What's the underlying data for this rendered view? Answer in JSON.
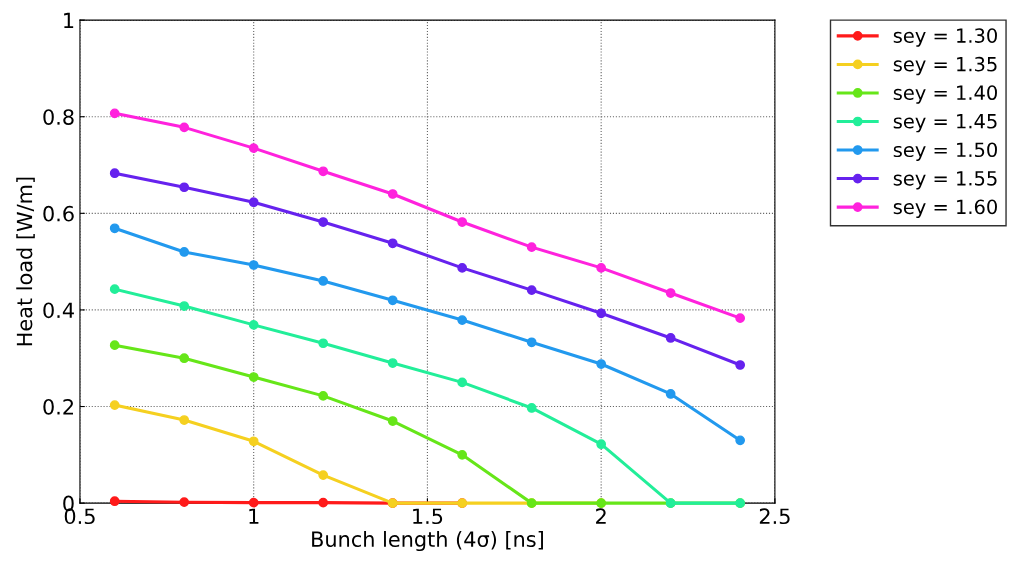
{
  "chart_data": {
    "type": "line",
    "xlabel": "Bunch length (4σ) [ns]",
    "ylabel": "Heat load [W/m]",
    "x": [
      0.6,
      0.8,
      1.0,
      1.2,
      1.4,
      1.6,
      1.8,
      2.0,
      2.2,
      2.4
    ],
    "xlim": [
      0.5,
      2.5
    ],
    "xticks": [
      0.5,
      1,
      1.5,
      2,
      2.5
    ],
    "ylim": [
      0,
      1
    ],
    "yticks": [
      0,
      0.2,
      0.4,
      0.6,
      0.8,
      1
    ],
    "grid": true,
    "legend": "top right",
    "marker": "circle",
    "line_style": "solid",
    "series": [
      {
        "name": "sey = 1.30",
        "color": "#ff1a1a",
        "values": [
          0.004,
          0.002,
          0.001,
          0.001,
          0,
          0,
          null,
          null,
          null,
          null
        ]
      },
      {
        "name": "sey = 1.35",
        "color": "#f5d020",
        "values": [
          0.203,
          0.172,
          0.128,
          0.058,
          0,
          0,
          0,
          0,
          null,
          null
        ]
      },
      {
        "name": "sey = 1.40",
        "color": "#66e619",
        "values": [
          0.327,
          0.3,
          0.261,
          0.222,
          0.17,
          0.1,
          0,
          0,
          0,
          0
        ]
      },
      {
        "name": "sey = 1.45",
        "color": "#22ee99",
        "values": [
          0.443,
          0.408,
          0.369,
          0.331,
          0.29,
          0.25,
          0.197,
          0.122,
          0,
          0
        ]
      },
      {
        "name": "sey = 1.50",
        "color": "#2299ee",
        "values": [
          0.569,
          0.52,
          0.493,
          0.46,
          0.42,
          0.379,
          0.333,
          0.288,
          0.226,
          0.13
        ]
      },
      {
        "name": "sey = 1.55",
        "color": "#6622ee",
        "values": [
          0.683,
          0.654,
          0.623,
          0.582,
          0.538,
          0.487,
          0.441,
          0.393,
          0.342,
          0.286
        ]
      },
      {
        "name": "sey = 1.60",
        "color": "#ff22dd",
        "values": [
          0.807,
          0.778,
          0.735,
          0.687,
          0.64,
          0.582,
          0.53,
          0.487,
          0.435,
          0.383
        ]
      }
    ]
  }
}
